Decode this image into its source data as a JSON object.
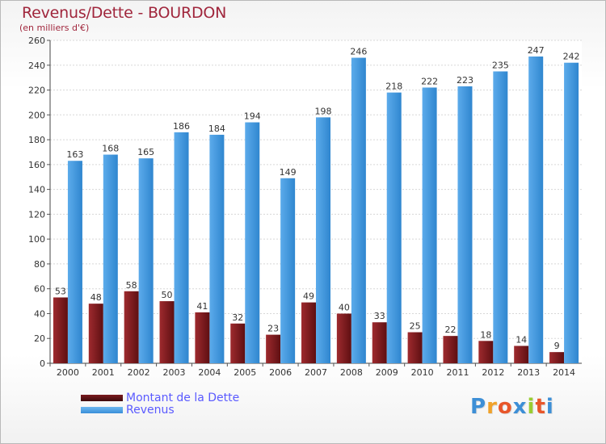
{
  "chart_data": {
    "type": "bar",
    "title": "Revenus/Dette - BOURDON",
    "subtitle": "(en milliers d'€)",
    "categories": [
      "2000",
      "2001",
      "2002",
      "2003",
      "2004",
      "2005",
      "2006",
      "2007",
      "2008",
      "2009",
      "2010",
      "2011",
      "2012",
      "2013",
      "2014"
    ],
    "series": [
      {
        "name": "Montant de la Dette",
        "color": "#8b1e22",
        "values": [
          53,
          48,
          58,
          50,
          41,
          32,
          23,
          49,
          40,
          33,
          25,
          22,
          18,
          14,
          9
        ]
      },
      {
        "name": "Revenus",
        "color": "#4f9ee0",
        "values": [
          163,
          168,
          165,
          186,
          184,
          194,
          149,
          198,
          246,
          218,
          222,
          223,
          235,
          247,
          242
        ]
      }
    ],
    "ylim": [
      0,
      260
    ],
    "yticks": [
      0,
      20,
      40,
      60,
      80,
      100,
      120,
      140,
      160,
      180,
      200,
      220,
      240,
      260
    ],
    "grid": true,
    "legend_position": "bottom-left"
  },
  "logo": {
    "text_parts": [
      "P",
      "r",
      "o",
      "x",
      "i",
      "t",
      "i"
    ],
    "colors": [
      "#3d8fd6",
      "#f0a22a",
      "#e8562a",
      "#3d8fd6",
      "#9acd32",
      "#e8562a",
      "#3d8fd6"
    ]
  }
}
